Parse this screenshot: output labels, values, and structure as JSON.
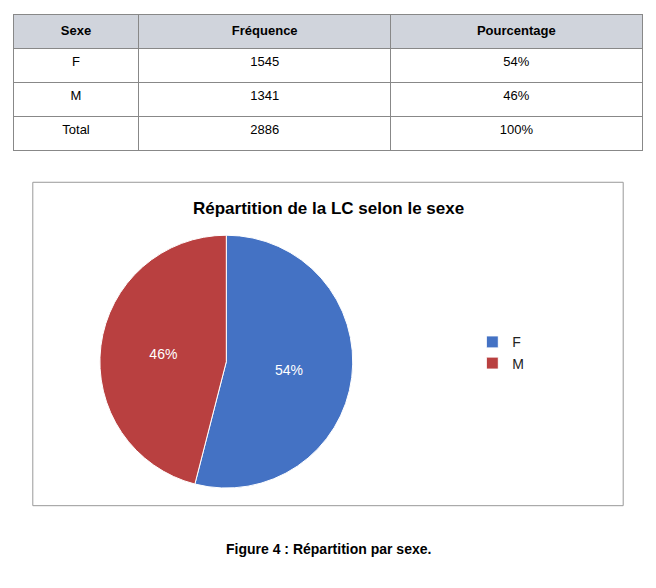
{
  "chart_data": [
    {
      "type": "table",
      "columns": [
        "Sexe",
        "Fréquence",
        "Pourcentage"
      ],
      "rows": [
        [
          "F",
          "1545",
          "54%"
        ],
        [
          "M",
          "1341",
          "46%"
        ],
        [
          "Total",
          "2886",
          "100%"
        ]
      ]
    },
    {
      "type": "pie",
      "title": "Répartition de la LC selon le sexe",
      "categories": [
        "F",
        "M"
      ],
      "values": [
        54,
        46
      ],
      "value_labels": [
        "54%",
        "46%"
      ],
      "colors": [
        "#4472C4",
        "#B94040"
      ],
      "data_labels": true,
      "legend": "right",
      "caption": "Figure 4 : Répartition par sexe."
    }
  ]
}
